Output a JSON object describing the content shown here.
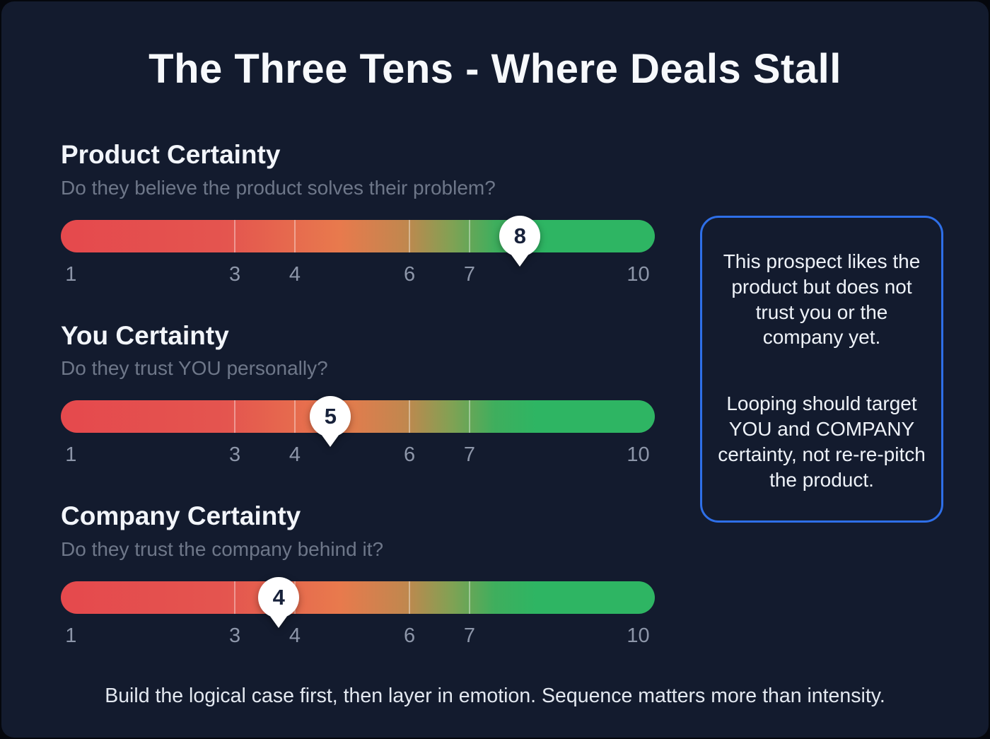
{
  "page": {
    "title": "The Three Tens - Where Deals Stall",
    "footer": "Build the logical case first, then layer in emotion. Sequence matters more than intensity."
  },
  "colors": {
    "background": "#131b2e",
    "accent_blue": "#2e6fe8",
    "bar_gradient_start": "#e5494d",
    "bar_gradient_mid": "#e87a4d",
    "bar_gradient_end": "#2eb563",
    "marker_bg": "#ffffff",
    "marker_text": "#17213a"
  },
  "scales": [
    {
      "heading": "Product Certainty",
      "subtitle": "Do they believe the product solves their problem?",
      "value": 8,
      "value_pos": 77.3,
      "tick_positions": [
        29.3,
        39.4,
        58.7,
        68.8
      ],
      "axis_labels": [
        {
          "label": "1",
          "pos": 1.7
        },
        {
          "label": "3",
          "pos": 29.3
        },
        {
          "label": "4",
          "pos": 39.4
        },
        {
          "label": "6",
          "pos": 58.7
        },
        {
          "label": "7",
          "pos": 68.8
        },
        {
          "label": "10",
          "pos": 97.2
        }
      ]
    },
    {
      "heading": "You Certainty",
      "subtitle": "Do they trust YOU personally?",
      "value": 5,
      "value_pos": 45.4,
      "tick_positions": [
        29.3,
        39.4,
        58.7,
        68.8
      ],
      "axis_labels": [
        {
          "label": "1",
          "pos": 1.7
        },
        {
          "label": "3",
          "pos": 29.3
        },
        {
          "label": "4",
          "pos": 39.4
        },
        {
          "label": "6",
          "pos": 58.7
        },
        {
          "label": "7",
          "pos": 68.8
        },
        {
          "label": "10",
          "pos": 97.2
        }
      ]
    },
    {
      "heading": "Company Certainty",
      "subtitle": "Do they trust the company behind it?",
      "value": 4,
      "value_pos": 36.7,
      "tick_positions": [
        29.3,
        39.4,
        58.7,
        68.8
      ],
      "axis_labels": [
        {
          "label": "1",
          "pos": 1.7
        },
        {
          "label": "3",
          "pos": 29.3
        },
        {
          "label": "4",
          "pos": 39.4
        },
        {
          "label": "6",
          "pos": 58.7
        },
        {
          "label": "7",
          "pos": 68.8
        },
        {
          "label": "10",
          "pos": 97.2
        }
      ]
    }
  ],
  "callout": {
    "paragraphs": [
      "This prospect likes the product but does not trust you or the company yet.",
      "Looping should target YOU and COMPANY certainty, not re-re-pitch the product."
    ]
  },
  "chart_data": {
    "type": "bar",
    "orientation": "horizontal",
    "title": "The Three Tens - Where Deals Stall",
    "categories": [
      "Product Certainty",
      "You Certainty",
      "Company Certainty"
    ],
    "values": [
      8,
      5,
      4
    ],
    "scale": {
      "min": 1,
      "max": 10,
      "tick_labels": [
        1,
        3,
        4,
        6,
        7,
        10
      ]
    },
    "annotations": [
      "This prospect likes the product but does not trust you or the company yet.",
      "Looping should target YOU and COMPANY certainty, not re-re-pitch the product.",
      "Build the logical case first, then layer in emotion. Sequence matters more than intensity."
    ]
  }
}
